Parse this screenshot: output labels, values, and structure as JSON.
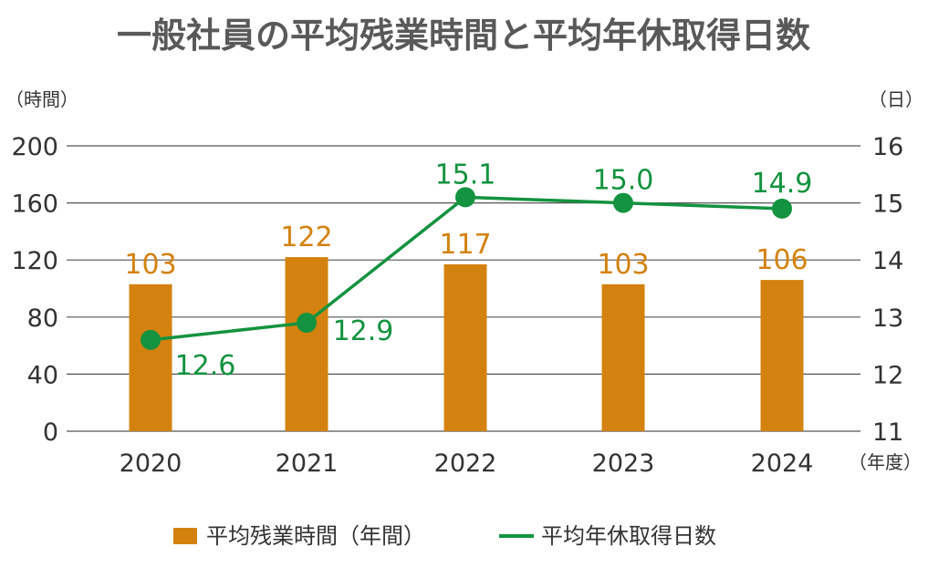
{
  "chart_data": {
    "type": "bar+line",
    "title": "一般社員の平均残業時間と平均年休取得日数",
    "categories": [
      "2020",
      "2021",
      "2022",
      "2023",
      "2024"
    ],
    "x_unit": "（年度）",
    "y_left": {
      "unit": "（時間）",
      "range": [
        0,
        200
      ],
      "ticks": [
        "0",
        "40",
        "80",
        "120",
        "160",
        "200"
      ]
    },
    "y_right": {
      "unit": "（日）",
      "range": [
        11,
        16
      ],
      "ticks": [
        "11",
        "12",
        "13",
        "14",
        "15",
        "16"
      ]
    },
    "series": [
      {
        "name": "平均残業時間（年間）",
        "type": "bar",
        "axis": "left",
        "color": "#d4820f",
        "values": [
          103,
          122,
          117,
          103,
          106
        ],
        "labels": [
          "103",
          "122",
          "117",
          "103",
          "106"
        ]
      },
      {
        "name": "平均年休取得日数",
        "type": "line",
        "axis": "right",
        "color": "#13933f",
        "values": [
          12.6,
          12.9,
          15.1,
          15.0,
          14.9
        ],
        "labels": [
          "12.6",
          "12.9",
          "15.1",
          "15.0",
          "14.9"
        ]
      }
    ],
    "grid": true,
    "legend": "bottom-center"
  }
}
